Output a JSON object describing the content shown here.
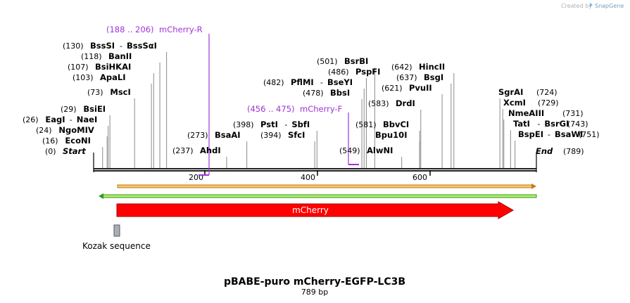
{
  "credit": {
    "created_by": "Created by",
    "brand": "SnapGene"
  },
  "title": "pBABE-puro mCherry-EGFP-LC3B",
  "length_label": "789 bp",
  "sequence_length": 789,
  "ruler_ticks": [
    "200",
    "400",
    "600"
  ],
  "ends": {
    "start": {
      "pos": "(0)",
      "name": "Start",
      "bp": 0
    },
    "end": {
      "name": "End",
      "pos": "(789)",
      "bp": 789
    }
  },
  "left_sites": [
    {
      "pos": "(130)",
      "names": [
        "BssSI",
        "BssSαI"
      ],
      "bp": 130
    },
    {
      "pos": "(118)",
      "names": [
        "BanII"
      ],
      "bp": 118
    },
    {
      "pos": "(107)",
      "names": [
        "BsiHKAI"
      ],
      "bp": 107
    },
    {
      "pos": "(103)",
      "names": [
        "ApaLI"
      ],
      "bp": 103
    },
    {
      "pos": "(73)",
      "names": [
        "MscI"
      ],
      "bp": 73
    },
    {
      "pos": "(29)",
      "names": [
        "BsiEI"
      ],
      "bp": 29
    },
    {
      "pos": "(26)",
      "names": [
        "EagI",
        "NaeI"
      ],
      "bp": 26
    },
    {
      "pos": "(24)",
      "names": [
        "NgoMIV"
      ],
      "bp": 24
    },
    {
      "pos": "(16)",
      "names": [
        "EcoNI"
      ],
      "bp": 16
    }
  ],
  "middle_sites": [
    {
      "pos": "(273)",
      "names": [
        "BsaAI"
      ],
      "bp": 273
    },
    {
      "pos": "(237)",
      "names": [
        "AhdI"
      ],
      "bp": 237
    },
    {
      "pos": "(398)",
      "names": [
        "PstI",
        "SbfI"
      ],
      "bp": 398
    },
    {
      "pos": "(394)",
      "names": [
        "SfcI"
      ],
      "bp": 394
    }
  ],
  "center_sites": [
    {
      "pos": "(501)",
      "names": [
        "BsrBI"
      ],
      "bp": 501
    },
    {
      "pos": "(486)",
      "names": [
        "PspFI"
      ],
      "bp": 486
    },
    {
      "pos": "(482)",
      "names": [
        "PflMI",
        "BseYI"
      ],
      "bp": 482
    },
    {
      "pos": "(478)",
      "names": [
        "BbsI"
      ],
      "bp": 478
    },
    {
      "pos": "(583)",
      "names": [
        "DrdI"
      ],
      "bp": 583
    },
    {
      "pos": "(581)",
      "names": [
        "BbvCI"
      ],
      "bp": 581
    },
    {
      "pos": "",
      "names": [
        "Bpu10I"
      ],
      "bp": 581
    },
    {
      "pos": "(549)",
      "names": [
        "AlwNI"
      ],
      "bp": 549
    },
    {
      "pos": "(642)",
      "names": [
        "HincII"
      ],
      "bp": 642
    },
    {
      "pos": "(637)",
      "names": [
        "BsgI"
      ],
      "bp": 637
    },
    {
      "pos": "(621)",
      "names": [
        "PvuII"
      ],
      "bp": 621
    }
  ],
  "right_sites": [
    {
      "names": [
        "SgrAI"
      ],
      "pos": "(724)",
      "bp": 724
    },
    {
      "names": [
        "XcmI"
      ],
      "pos": "(729)",
      "bp": 729
    },
    {
      "names": [
        "NmeAIII"
      ],
      "pos": "(731)",
      "bp": 731
    },
    {
      "names": [
        "TatI",
        "BsrGI"
      ],
      "pos": "(743)",
      "bp": 743
    },
    {
      "names": [
        "BspEI",
        "BsaWI"
      ],
      "pos": "(751)",
      "bp": 751
    }
  ],
  "primers": [
    {
      "range": "(188 .. 206)",
      "name": "mCherry-R",
      "direction": "reverse"
    },
    {
      "range": "(456 .. 475)",
      "name": "mCherry-F",
      "direction": "forward"
    }
  ],
  "features": {
    "mcherry_label": "mCherry",
    "kozak_label": "Kozak sequence"
  },
  "colors": {
    "primer": "#a033d9",
    "mcherry": "#ff0000",
    "orf_forward_fill": "#f2c86b",
    "orf_forward_stroke": "#c77a1a",
    "orf_reverse_fill": "#b8ef6a",
    "orf_reverse_stroke": "#2d9a1a",
    "kozak": "#a9aeb8"
  }
}
